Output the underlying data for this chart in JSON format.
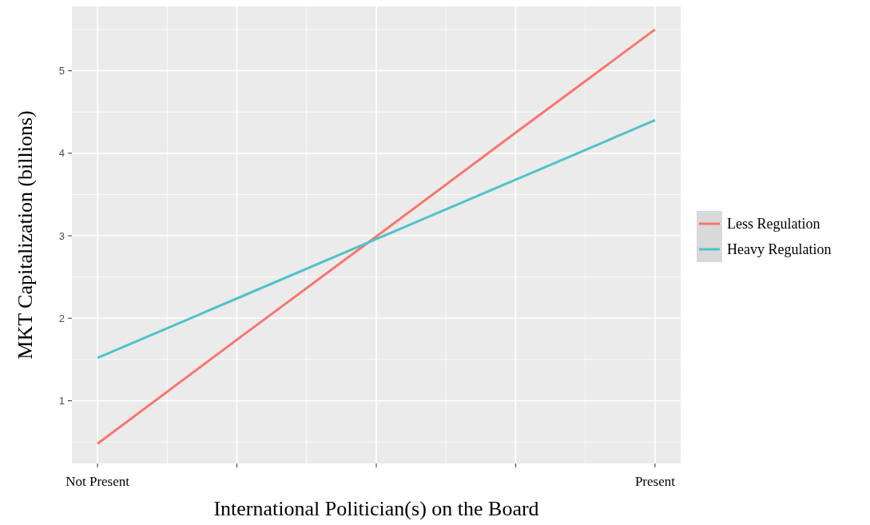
{
  "chart_data": {
    "type": "line",
    "xlabel": "International Politician(s) on the Board",
    "ylabel": "MKT Capitalization (billions)",
    "categories": [
      "Not Present",
      null,
      null,
      null,
      "Present"
    ],
    "series": [
      {
        "name": "Less Regulation",
        "color": "#f8766d",
        "values": [
          0.48,
          1.74,
          2.99,
          4.25,
          5.5
        ]
      },
      {
        "name": "Heavy Regulation",
        "color": "#4fc3c8",
        "values": [
          1.52,
          2.24,
          2.96,
          3.68,
          4.4
        ]
      }
    ],
    "ylim": [
      0.24,
      5.78
    ],
    "yticks": [
      1,
      2,
      3,
      4,
      5
    ],
    "grid": true,
    "legend": "right",
    "marker": "none",
    "line_style": "solid"
  }
}
